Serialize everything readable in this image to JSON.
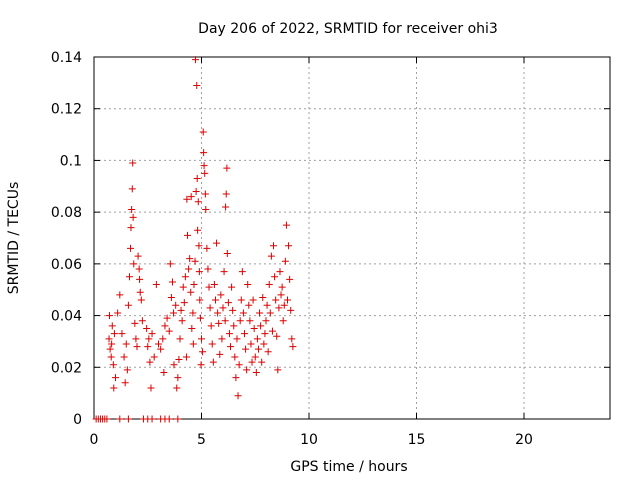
{
  "chart_data": {
    "type": "scatter",
    "title": "Day 206 of 2022, SRMTID for receiver ohi3",
    "xlabel": "GPS time / hours",
    "ylabel": "SRMTID / TECUs",
    "xlim": [
      0,
      24
    ],
    "ylim": [
      0,
      0.14
    ],
    "xticks": [
      0,
      5,
      10,
      15,
      20
    ],
    "xtick_labels": [
      "0",
      "5",
      "10",
      "15",
      "20"
    ],
    "yticks": [
      0,
      0.02,
      0.04,
      0.06,
      0.08,
      0.1,
      0.12,
      0.14
    ],
    "ytick_labels": [
      "0",
      "0.02",
      "0.04",
      "0.06",
      "0.08",
      "0.1",
      "0.12",
      "0.14"
    ],
    "grid": true,
    "marker": "plus",
    "color": "#dd0000",
    "series": [
      {
        "name": "SRMTID",
        "points": [
          [
            0.1,
            0
          ],
          [
            0.2,
            0
          ],
          [
            0.3,
            0
          ],
          [
            0.4,
            0
          ],
          [
            0.5,
            0
          ],
          [
            0.6,
            0
          ],
          [
            1.2,
            0
          ],
          [
            1.6,
            0
          ],
          [
            2.3,
            0
          ],
          [
            2.5,
            0
          ],
          [
            2.7,
            0
          ],
          [
            3.1,
            0
          ],
          [
            3.3,
            0
          ],
          [
            3.5,
            0
          ],
          [
            3.9,
            0
          ],
          [
            0.7,
            0.031
          ],
          [
            0.75,
            0.027
          ],
          [
            0.8,
            0.024
          ],
          [
            0.85,
            0.036
          ],
          [
            0.9,
            0.021
          ],
          [
            0.95,
            0.033
          ],
          [
            1.0,
            0.016
          ],
          [
            0.72,
            0.04
          ],
          [
            0.82,
            0.029
          ],
          [
            0.92,
            0.012
          ],
          [
            1.1,
            0.041
          ],
          [
            1.2,
            0.048
          ],
          [
            1.3,
            0.033
          ],
          [
            1.4,
            0.024
          ],
          [
            1.45,
            0.014
          ],
          [
            1.5,
            0.029
          ],
          [
            1.55,
            0.019
          ],
          [
            1.6,
            0.044
          ],
          [
            1.65,
            0.055
          ],
          [
            1.7,
            0.066
          ],
          [
            1.72,
            0.074
          ],
          [
            1.75,
            0.081
          ],
          [
            1.78,
            0.089
          ],
          [
            1.8,
            0.099
          ],
          [
            1.82,
            0.078
          ],
          [
            1.85,
            0.06
          ],
          [
            1.9,
            0.037
          ],
          [
            1.95,
            0.031
          ],
          [
            2.0,
            0.028
          ],
          [
            2.05,
            0.063
          ],
          [
            2.1,
            0.058
          ],
          [
            2.12,
            0.054
          ],
          [
            2.15,
            0.049
          ],
          [
            2.2,
            0.046
          ],
          [
            2.25,
            0.038
          ],
          [
            2.45,
            0.035
          ],
          [
            2.5,
            0.028
          ],
          [
            2.55,
            0.031
          ],
          [
            2.6,
            0.022
          ],
          [
            2.65,
            0.012
          ],
          [
            2.7,
            0.033
          ],
          [
            2.8,
            0.024
          ],
          [
            2.9,
            0.052
          ],
          [
            3.0,
            0.029
          ],
          [
            3.1,
            0.027
          ],
          [
            3.2,
            0.031
          ],
          [
            3.25,
            0.018
          ],
          [
            3.3,
            0.036
          ],
          [
            3.4,
            0.039
          ],
          [
            3.5,
            0.034
          ],
          [
            3.55,
            0.06
          ],
          [
            3.6,
            0.047
          ],
          [
            3.65,
            0.053
          ],
          [
            3.7,
            0.041
          ],
          [
            3.72,
            0.021
          ],
          [
            3.8,
            0.044
          ],
          [
            3.85,
            0.012
          ],
          [
            3.9,
            0.016
          ],
          [
            3.95,
            0.023
          ],
          [
            4.0,
            0.031
          ],
          [
            4.05,
            0.042
          ],
          [
            4.1,
            0.038
          ],
          [
            4.15,
            0.051
          ],
          [
            4.2,
            0.045
          ],
          [
            4.25,
            0.055
          ],
          [
            4.3,
            0.024
          ],
          [
            4.32,
            0.085
          ],
          [
            4.35,
            0.071
          ],
          [
            4.4,
            0.058
          ],
          [
            4.45,
            0.062
          ],
          [
            4.5,
            0.049
          ],
          [
            4.52,
            0.086
          ],
          [
            4.55,
            0.035
          ],
          [
            4.6,
            0.041
          ],
          [
            4.62,
            0.029
          ],
          [
            4.65,
            0.052
          ],
          [
            4.7,
            0.061
          ],
          [
            4.72,
            0.139
          ],
          [
            4.75,
            0.088
          ],
          [
            4.78,
            0.129
          ],
          [
            4.8,
            0.093
          ],
          [
            4.82,
            0.073
          ],
          [
            4.85,
            0.084
          ],
          [
            4.88,
            0.067
          ],
          [
            4.9,
            0.057
          ],
          [
            4.92,
            0.046
          ],
          [
            4.95,
            0.039
          ],
          [
            4.98,
            0.021
          ],
          [
            5.0,
            0.031
          ],
          [
            5.05,
            0.026
          ],
          [
            5.08,
            0.111
          ],
          [
            5.1,
            0.103
          ],
          [
            5.12,
            0.098
          ],
          [
            5.15,
            0.095
          ],
          [
            5.18,
            0.087
          ],
          [
            5.2,
            0.081
          ],
          [
            5.25,
            0.066
          ],
          [
            5.3,
            0.058
          ],
          [
            5.35,
            0.051
          ],
          [
            5.4,
            0.043
          ],
          [
            5.45,
            0.036
          ],
          [
            5.5,
            0.029
          ],
          [
            5.55,
            0.022
          ],
          [
            5.6,
            0.052
          ],
          [
            5.65,
            0.046
          ],
          [
            5.7,
            0.068
          ],
          [
            5.75,
            0.041
          ],
          [
            5.8,
            0.037
          ],
          [
            5.85,
            0.025
          ],
          [
            5.9,
            0.048
          ],
          [
            5.95,
            0.031
          ],
          [
            6.0,
            0.043
          ],
          [
            6.05,
            0.057
          ],
          [
            6.1,
            0.038
          ],
          [
            6.12,
            0.082
          ],
          [
            6.15,
            0.087
          ],
          [
            6.18,
            0.097
          ],
          [
            6.2,
            0.064
          ],
          [
            6.25,
            0.045
          ],
          [
            6.3,
            0.033
          ],
          [
            6.35,
            0.028
          ],
          [
            6.4,
            0.051
          ],
          [
            6.45,
            0.042
          ],
          [
            6.5,
            0.036
          ],
          [
            6.55,
            0.024
          ],
          [
            6.6,
            0.016
          ],
          [
            6.65,
            0.031
          ],
          [
            6.7,
            0.009
          ],
          [
            6.75,
            0.021
          ],
          [
            6.8,
            0.038
          ],
          [
            6.85,
            0.046
          ],
          [
            6.9,
            0.057
          ],
          [
            6.95,
            0.041
          ],
          [
            7.0,
            0.033
          ],
          [
            7.05,
            0.027
          ],
          [
            7.1,
            0.019
          ],
          [
            7.15,
            0.052
          ],
          [
            7.2,
            0.044
          ],
          [
            7.25,
            0.038
          ],
          [
            7.3,
            0.029
          ],
          [
            7.35,
            0.022
          ],
          [
            7.4,
            0.046
          ],
          [
            7.45,
            0.035
          ],
          [
            7.5,
            0.024
          ],
          [
            7.55,
            0.018
          ],
          [
            7.6,
            0.031
          ],
          [
            7.65,
            0.027
          ],
          [
            7.7,
            0.041
          ],
          [
            7.75,
            0.036
          ],
          [
            7.8,
            0.022
          ],
          [
            7.85,
            0.047
          ],
          [
            7.9,
            0.029
          ],
          [
            7.95,
            0.033
          ],
          [
            8.0,
            0.038
          ],
          [
            8.05,
            0.044
          ],
          [
            8.1,
            0.026
          ],
          [
            8.15,
            0.052
          ],
          [
            8.2,
            0.041
          ],
          [
            8.25,
            0.063
          ],
          [
            8.3,
            0.034
          ],
          [
            8.35,
            0.067
          ],
          [
            8.4,
            0.055
          ],
          [
            8.45,
            0.046
          ],
          [
            8.5,
            0.032
          ],
          [
            8.55,
            0.019
          ],
          [
            8.6,
            0.043
          ],
          [
            8.65,
            0.057
          ],
          [
            8.7,
            0.048
          ],
          [
            8.75,
            0.051
          ],
          [
            8.8,
            0.038
          ],
          [
            8.85,
            0.044
          ],
          [
            8.9,
            0.061
          ],
          [
            8.95,
            0.075
          ],
          [
            9.0,
            0.046
          ],
          [
            9.05,
            0.067
          ],
          [
            9.1,
            0.054
          ],
          [
            9.15,
            0.042
          ],
          [
            9.2,
            0.031
          ],
          [
            9.25,
            0.028
          ]
        ]
      }
    ]
  }
}
